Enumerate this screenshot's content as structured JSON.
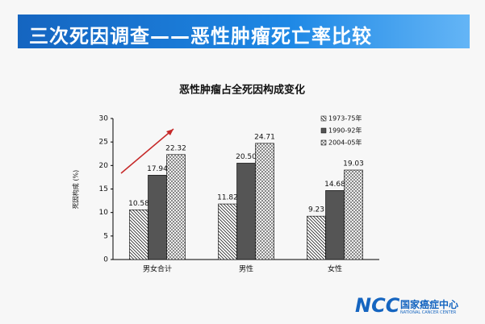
{
  "header": {
    "title": "三次死因调查——恶性肿瘤死亡率比较"
  },
  "chart_data": {
    "type": "bar",
    "title": "恶性肿瘤占全死因构成变化",
    "y_label": "死因构成 (%)",
    "categories": [
      "男女合计",
      "男性",
      "女性"
    ],
    "series": [
      {
        "name": "1973-75年",
        "color": "#222222",
        "pattern": "hatch",
        "values": [
          10.58,
          11.82,
          9.23
        ],
        "value_labels": [
          "10.58",
          "11.82",
          "9.23"
        ]
      },
      {
        "name": "1990-92年",
        "color": "#555555",
        "pattern": "solid",
        "values": [
          17.94,
          20.5,
          14.68
        ],
        "value_labels": [
          "17.94",
          "20.50",
          "14.68"
        ]
      },
      {
        "name": "2004-05年",
        "color": "#888888",
        "pattern": "checker",
        "values": [
          22.32,
          24.71,
          19.03
        ],
        "value_labels": [
          "22.32",
          "24.71",
          "19.03"
        ]
      }
    ],
    "ylim": [
      0,
      30
    ],
    "yticks": [
      0,
      5,
      10,
      15,
      20,
      25,
      30
    ],
    "legend": "top-right"
  },
  "logo": {
    "mark": "NCC",
    "name": "国家癌症中心",
    "subtitle": "NATIONAL CANCER CENTER"
  }
}
